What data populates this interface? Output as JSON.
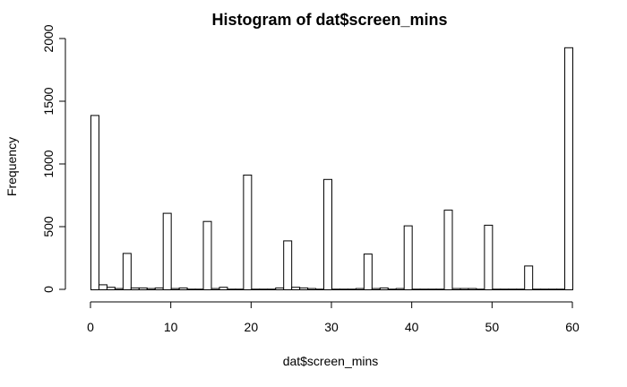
{
  "chart_data": {
    "type": "bar",
    "title": "Histogram of dat$screen_mins",
    "xlabel": "dat$screen_mins",
    "ylabel": "Frequency",
    "xlim": [
      0,
      60
    ],
    "ylim": [
      0,
      2000
    ],
    "x_ticks": [
      0,
      10,
      20,
      30,
      40,
      50,
      60
    ],
    "y_ticks": [
      0,
      500,
      1000,
      1500,
      2000
    ],
    "bin_width": 1,
    "bin_starts": [
      0,
      1,
      2,
      3,
      4,
      5,
      6,
      7,
      8,
      9,
      10,
      11,
      12,
      13,
      14,
      15,
      16,
      17,
      18,
      19,
      20,
      21,
      22,
      23,
      24,
      25,
      26,
      27,
      28,
      29,
      30,
      31,
      32,
      33,
      34,
      35,
      36,
      37,
      38,
      39,
      40,
      41,
      42,
      43,
      44,
      45,
      46,
      47,
      48,
      49,
      50,
      51,
      52,
      53,
      54,
      55,
      56,
      57,
      58,
      59
    ],
    "values": [
      1390,
      40,
      20,
      10,
      290,
      15,
      15,
      10,
      15,
      610,
      10,
      15,
      5,
      5,
      545,
      10,
      20,
      5,
      5,
      915,
      5,
      5,
      5,
      15,
      390,
      20,
      15,
      10,
      5,
      880,
      5,
      5,
      5,
      10,
      285,
      10,
      15,
      5,
      10,
      510,
      5,
      5,
      5,
      5,
      635,
      10,
      10,
      10,
      5,
      515,
      5,
      5,
      5,
      5,
      190,
      5,
      5,
      5,
      5,
      1930
    ],
    "grid": false,
    "legend": "none"
  }
}
